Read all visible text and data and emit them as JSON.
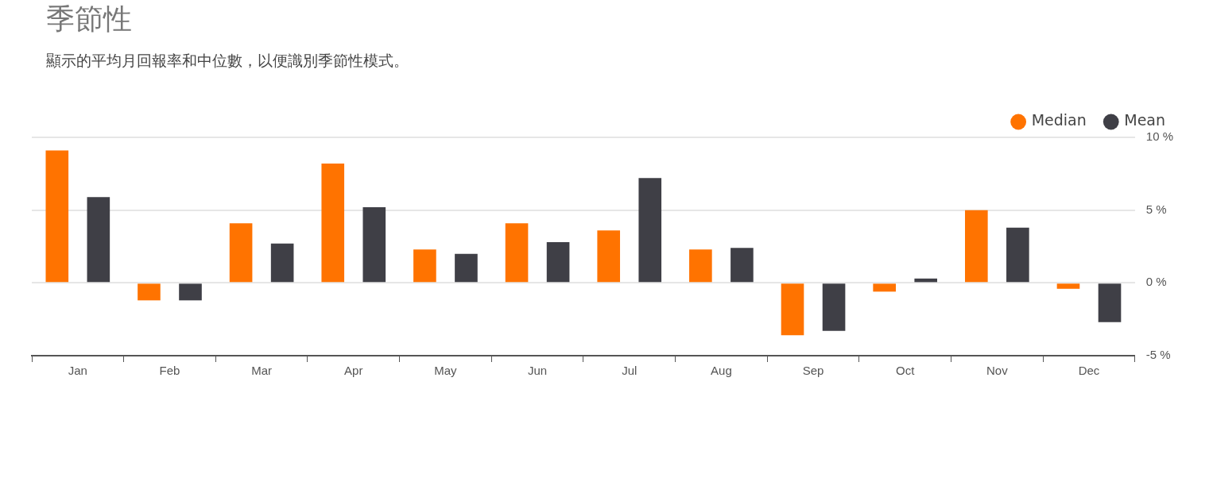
{
  "chart_data": {
    "type": "bar",
    "title": "季節性",
    "subtitle": "顯示的平均月回報率和中位數，以便識別季節性模式。",
    "categories": [
      "Jan",
      "Feb",
      "Mar",
      "Apr",
      "May",
      "Jun",
      "Jul",
      "Aug",
      "Sep",
      "Oct",
      "Nov",
      "Dec"
    ],
    "series": [
      {
        "name": "Median",
        "color": "#ff7300",
        "values": [
          9.1,
          -1.2,
          4.1,
          8.2,
          2.3,
          4.1,
          3.6,
          2.3,
          -3.6,
          -0.6,
          5.0,
          -0.4
        ]
      },
      {
        "name": "Mean",
        "color": "#3f3f46",
        "values": [
          5.9,
          -1.2,
          2.7,
          5.2,
          2.0,
          2.8,
          7.2,
          2.4,
          -3.3,
          0.3,
          3.8,
          -2.7
        ]
      }
    ],
    "ylim": [
      -5,
      10
    ],
    "yticks": [
      {
        "value": -5,
        "label": "-5 %"
      },
      {
        "value": 0,
        "label": "0 %"
      },
      {
        "value": 5,
        "label": "5 %"
      },
      {
        "value": 10,
        "label": "10 %"
      }
    ],
    "grid": "y",
    "legend": "top right"
  }
}
